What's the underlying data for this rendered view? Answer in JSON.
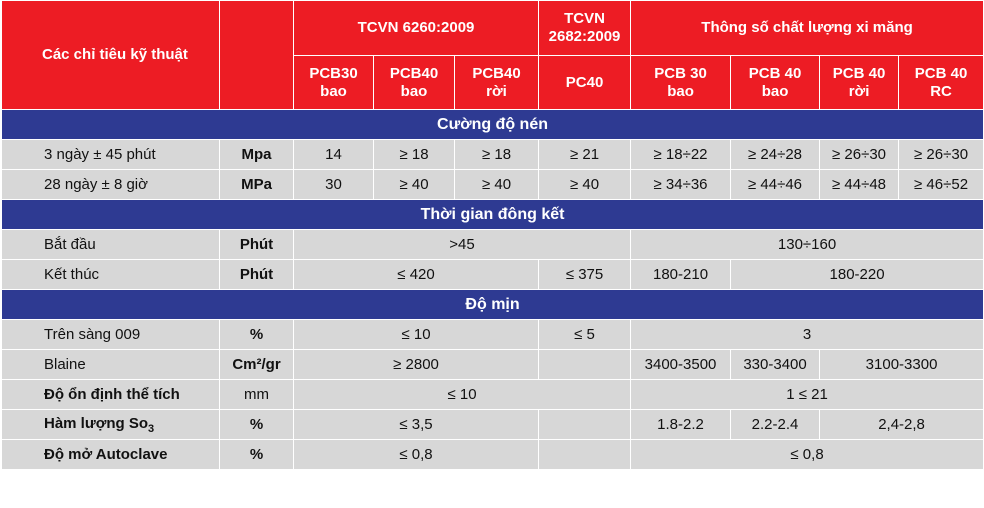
{
  "header": {
    "criteria": "Các chỉ tiêu kỹ thuật",
    "group_tcvn6260": "TCVN 6260:2009",
    "group_tcvn2682_line1": "TCVN",
    "group_tcvn2682_line2": "2682:2009",
    "group_quality": "Thông số chất lượng xi măng",
    "sub": [
      {
        "l1": "PCB30",
        "l2": "bao"
      },
      {
        "l1": "PCB40",
        "l2": "bao"
      },
      {
        "l1": "PCB40",
        "l2": "rời"
      },
      {
        "l1": "PC40",
        "l2": ""
      },
      {
        "l1": "PCB 30",
        "l2": "bao"
      },
      {
        "l1": "PCB 40",
        "l2": "bao"
      },
      {
        "l1": "PCB 40",
        "l2": "rời"
      },
      {
        "l1": "PCB 40",
        "l2": "RC"
      }
    ]
  },
  "sections": {
    "compressive": "Cường độ nén",
    "setting": "Thời gian đông kết",
    "fineness": "Độ mịn"
  },
  "rows": {
    "r3day": {
      "label": "3 ngày ± 45 phút",
      "unit": "Mpa",
      "v": [
        "14",
        "≥ 18",
        "≥ 18",
        "≥ 21",
        "≥ 18÷22",
        "≥ 24÷28",
        "≥ 26÷30",
        "≥ 26÷30"
      ]
    },
    "r28day": {
      "label": "28 ngày ± 8 giờ",
      "unit": "MPa",
      "v": [
        "30",
        "≥ 40",
        "≥ 40",
        "≥ 40",
        "≥ 34÷36",
        "≥ 44÷46",
        "≥ 44÷48",
        "≥ 46÷52"
      ]
    },
    "start": {
      "label": "Bắt đầu",
      "unit": "Phút",
      "std": ">45",
      "quality": "130÷160"
    },
    "end": {
      "label": "Kết thúc",
      "unit": "Phút",
      "std6260": "≤ 420",
      "std2682": "≤ 375",
      "q30": "180-210",
      "q40": "180-220"
    },
    "sieve": {
      "label": "Trên sàng 009",
      "unit": "%",
      "std6260": "≤ 10",
      "std2682": "≤ 5",
      "quality": "3"
    },
    "blaine": {
      "label": "Blaine",
      "unit": "Cm²/gr",
      "std6260": "≥ 2800",
      "q30": "3400-3500",
      "q40bao": "330-3400",
      "q40rest": "3100-3300"
    },
    "stability": {
      "label": "Độ ổn định thể tích",
      "unit": "mm",
      "std": "≤ 10",
      "quality": "1 ≤ 21"
    },
    "so3": {
      "label": "Hàm lượng So",
      "label_sub": "3",
      "unit": "%",
      "std": "≤ 3,5",
      "q30": "1.8-2.2",
      "q40bao": "2.2-2.4",
      "q40rest": "2,4-2,8"
    },
    "autoclave": {
      "label": "Độ mở Autoclave",
      "unit": "%",
      "std": "≤ 0,8",
      "quality": "≤ 0,8"
    }
  }
}
